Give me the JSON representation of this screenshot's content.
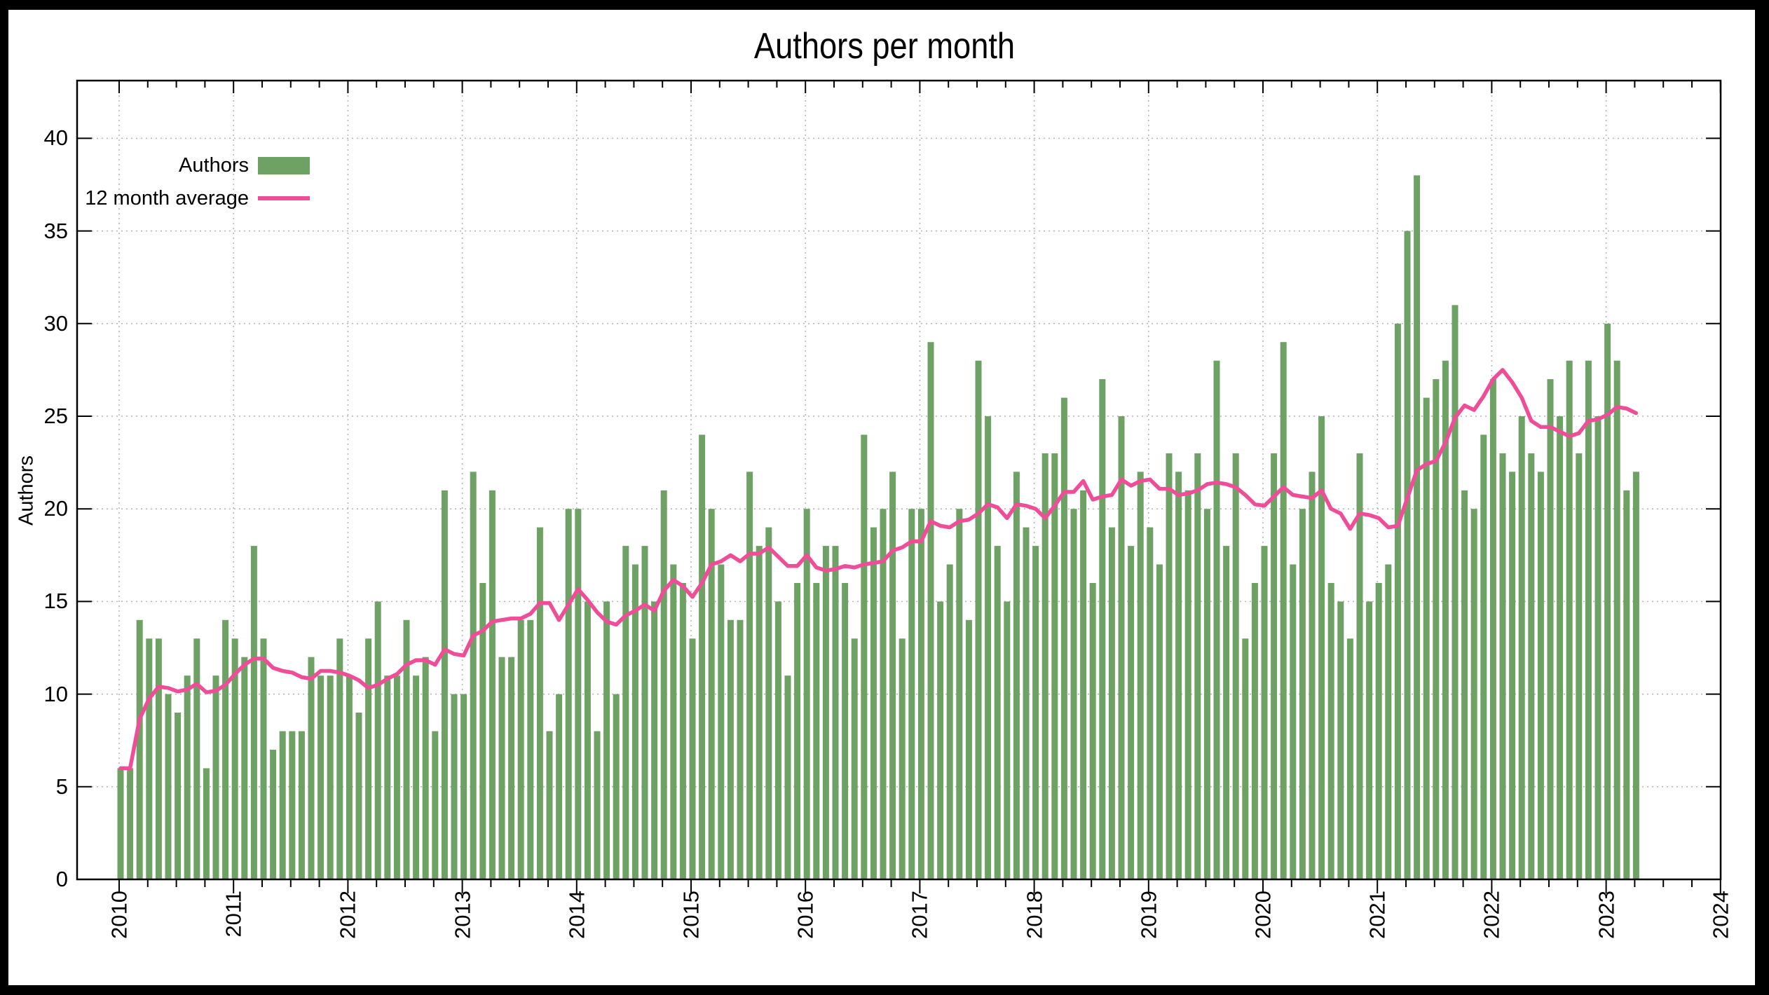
{
  "title": "Authors per month",
  "colors": {
    "bar": "#6ea164",
    "line": "#f04d98",
    "grid": "#b4b4b4",
    "axis": "#000000",
    "background": "#ffffff",
    "frame": "#000000"
  },
  "y_axis": {
    "label": "Authors",
    "ticks": [
      0,
      5,
      10,
      15,
      20,
      25,
      30,
      35,
      40
    ]
  },
  "x_axis": {
    "ticks": [
      "2010",
      "2011",
      "2012",
      "2013",
      "2014",
      "2015",
      "2016",
      "2017",
      "2018",
      "2019",
      "2020",
      "2021",
      "2022",
      "2023",
      "2024"
    ]
  },
  "legend": {
    "items": [
      {
        "label": "Authors",
        "swatch": "bar"
      },
      {
        "label": "12 month average",
        "swatch": "line"
      }
    ]
  },
  "chart_data": {
    "type": "bar",
    "title": "Authors per month",
    "xlabel": "",
    "ylabel": "Authors",
    "ylim": [
      0,
      40
    ],
    "x_start": "2010-01",
    "x_end": "2023-04",
    "grid": "dotted",
    "legend_position": "top-left-inside",
    "bar_series_name": "Authors",
    "line_series_name": "12 month average",
    "line_derivation": "trailing mean of current and previous 11 monthly values (growing window during first year)",
    "values_by_year": {
      "2010": [
        6,
        6,
        14,
        13,
        13,
        10,
        9,
        11,
        13,
        6,
        11,
        14
      ],
      "2011": [
        13,
        12,
        18,
        13,
        7,
        8,
        8,
        8,
        12,
        11,
        11,
        13
      ],
      "2012": [
        11,
        9,
        13,
        15,
        11,
        11,
        14,
        11,
        12,
        8,
        21,
        10
      ],
      "2013": [
        10,
        22,
        16,
        21,
        12,
        12,
        14,
        14,
        19,
        8,
        10,
        20
      ],
      "2014": [
        20,
        15,
        8,
        15,
        10,
        18,
        17,
        18,
        15,
        21,
        17,
        16
      ],
      "2015": [
        13,
        24,
        20,
        17,
        14,
        14,
        22,
        18,
        19,
        15,
        11,
        16
      ],
      "2016": [
        20,
        16,
        18,
        18,
        16,
        13,
        24,
        19,
        20,
        22,
        13,
        20
      ],
      "2017": [
        20,
        29,
        15,
        17,
        20,
        14,
        28,
        25,
        18,
        15,
        22,
        19
      ],
      "2018": [
        18,
        23,
        23,
        26,
        20,
        21,
        16,
        27,
        19,
        25,
        18,
        22
      ],
      "2019": [
        19,
        17,
        23,
        22,
        21,
        23,
        20,
        28,
        18,
        23,
        13,
        16
      ],
      "2020": [
        18,
        23,
        29,
        17,
        20,
        22,
        25,
        16,
        15,
        13,
        23,
        15
      ],
      "2021": [
        16,
        17,
        30,
        35,
        38,
        26,
        27,
        28,
        31,
        21,
        20,
        24
      ],
      "2022": [
        27,
        23,
        22,
        25,
        23,
        22,
        27,
        25,
        28,
        23,
        28,
        25
      ],
      "2023": [
        30,
        28,
        21,
        22
      ]
    }
  }
}
